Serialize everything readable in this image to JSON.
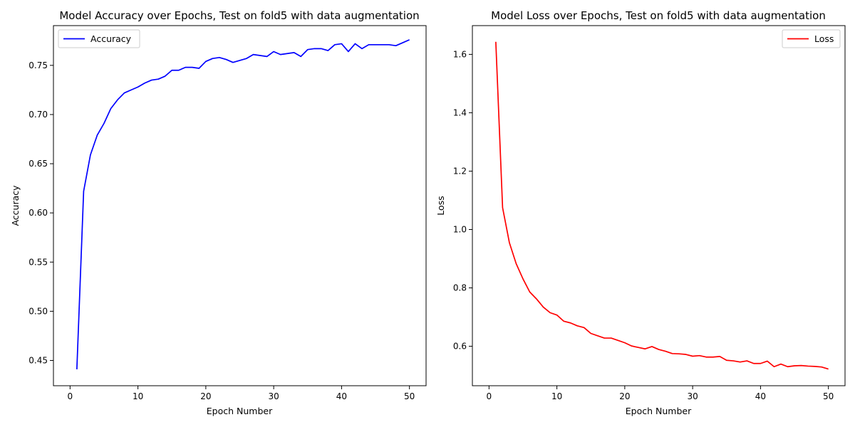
{
  "chart_data": [
    {
      "type": "line",
      "title": "Model Accuracy over Epochs, Test on fold5 with data augmentation",
      "xlabel": "Epoch Number",
      "ylabel": "Accuracy",
      "xlim": [
        -2.45,
        52.45
      ],
      "ylim": [
        0.4243,
        0.7904
      ],
      "xticks": [
        0,
        10,
        20,
        30,
        40,
        50
      ],
      "yticks": [
        0.45,
        0.5,
        0.55,
        0.6,
        0.65,
        0.7,
        0.75
      ],
      "xtick_labels": [
        "0",
        "10",
        "20",
        "30",
        "40",
        "50"
      ],
      "ytick_labels": [
        "0.45",
        "0.50",
        "0.55",
        "0.60",
        "0.65",
        "0.70",
        "0.75"
      ],
      "grid": false,
      "legend_placement": "top-left",
      "series": [
        {
          "name": "Accuracy",
          "color": "#0000ff",
          "x": [
            1,
            2,
            3,
            4,
            5,
            6,
            7,
            8,
            9,
            10,
            11,
            12,
            13,
            14,
            15,
            16,
            17,
            18,
            19,
            20,
            21,
            22,
            23,
            24,
            25,
            26,
            27,
            28,
            29,
            30,
            31,
            32,
            33,
            34,
            35,
            36,
            37,
            38,
            39,
            40,
            41,
            42,
            43,
            44,
            45,
            46,
            47,
            48,
            49,
            50
          ],
          "y": [
            0.441,
            0.622,
            0.659,
            0.679,
            0.691,
            0.706,
            0.715,
            0.722,
            0.725,
            0.728,
            0.732,
            0.735,
            0.736,
            0.739,
            0.745,
            0.745,
            0.748,
            0.748,
            0.747,
            0.754,
            0.757,
            0.758,
            0.756,
            0.753,
            0.755,
            0.757,
            0.761,
            0.76,
            0.759,
            0.764,
            0.761,
            0.762,
            0.763,
            0.759,
            0.766,
            0.767,
            0.767,
            0.765,
            0.771,
            0.772,
            0.764,
            0.772,
            0.767,
            0.771,
            0.771,
            0.771,
            0.771,
            0.77,
            0.773,
            0.776
          ]
        }
      ]
    },
    {
      "type": "line",
      "title": "Model Loss over Epochs, Test on fold5 with data augmentation",
      "xlabel": "Epoch Number",
      "ylabel": "Loss",
      "xlim": [
        -2.45,
        52.45
      ],
      "ylim": [
        0.4648,
        1.6985
      ],
      "xticks": [
        0,
        10,
        20,
        30,
        40,
        50
      ],
      "yticks": [
        0.6,
        0.8,
        1.0,
        1.2,
        1.4,
        1.6
      ],
      "xtick_labels": [
        "0",
        "10",
        "20",
        "30",
        "40",
        "50"
      ],
      "ytick_labels": [
        "0.6",
        "0.8",
        "1.0",
        "1.2",
        "1.4",
        "1.6"
      ],
      "grid": false,
      "legend_placement": "top-right",
      "series": [
        {
          "name": "Loss",
          "color": "#ff0000",
          "x": [
            1,
            2,
            3,
            4,
            5,
            6,
            7,
            8,
            9,
            10,
            11,
            12,
            13,
            14,
            15,
            16,
            17,
            18,
            19,
            20,
            21,
            22,
            23,
            24,
            25,
            26,
            27,
            28,
            29,
            30,
            31,
            32,
            33,
            34,
            35,
            36,
            37,
            38,
            39,
            40,
            41,
            42,
            43,
            44,
            45,
            46,
            47,
            48,
            49,
            50
          ],
          "y": [
            1.643,
            1.075,
            0.955,
            0.883,
            0.831,
            0.786,
            0.762,
            0.734,
            0.715,
            0.707,
            0.686,
            0.68,
            0.67,
            0.664,
            0.644,
            0.636,
            0.628,
            0.628,
            0.62,
            0.612,
            0.601,
            0.596,
            0.591,
            0.599,
            0.589,
            0.583,
            0.575,
            0.574,
            0.572,
            0.566,
            0.568,
            0.563,
            0.563,
            0.565,
            0.552,
            0.55,
            0.546,
            0.55,
            0.541,
            0.541,
            0.549,
            0.53,
            0.539,
            0.53,
            0.533,
            0.534,
            0.532,
            0.531,
            0.529,
            0.522
          ]
        }
      ]
    }
  ]
}
